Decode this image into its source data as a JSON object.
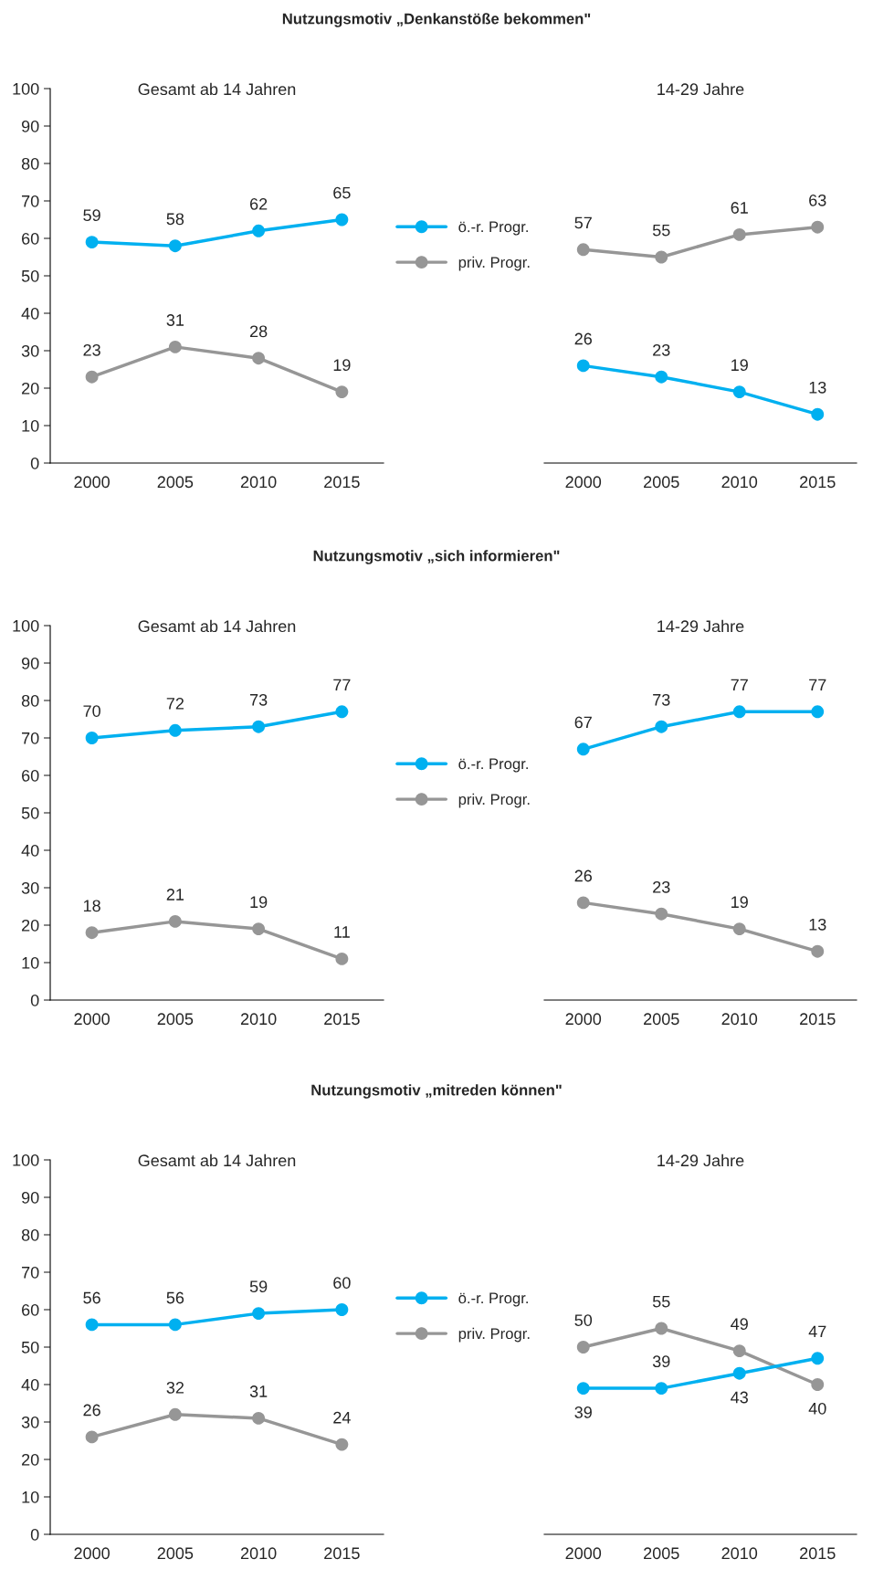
{
  "chart_data": [
    {
      "type": "line",
      "title": "Nutzungsmotiv „Denkanstöße bekommen\"",
      "subtitle": "Gesamt ab 14 Jahren",
      "categories": [
        "2000",
        "2005",
        "2010",
        "2015"
      ],
      "series": [
        {
          "name": "ö.-r. Progr.",
          "color": "#00b0f0",
          "values": [
            59,
            58,
            62,
            65
          ]
        },
        {
          "name": "priv. Progr.",
          "color": "#969696",
          "values": [
            23,
            31,
            28,
            19
          ]
        }
      ],
      "ylim": [
        0,
        100
      ],
      "yticks": [
        0,
        10,
        20,
        30,
        40,
        50,
        60,
        70,
        80,
        90,
        100
      ],
      "data_labels": true,
      "marker": "circle",
      "legend": "right",
      "grid": false
    },
    {
      "type": "line",
      "subtitle": "14-29 Jahre",
      "categories": [
        "2000",
        "2005",
        "2010",
        "2015"
      ],
      "series": [
        {
          "color": "#969696",
          "values": [
            57,
            55,
            61,
            63
          ]
        },
        {
          "color": "#00b0f0",
          "values": [
            26,
            23,
            19,
            13
          ]
        }
      ],
      "ylim": [
        0,
        100
      ],
      "tick_labels": "x",
      "data_labels": true,
      "marker": "circle",
      "grid": false
    },
    {
      "type": "line",
      "title": "Nutzungsmotiv „sich informieren\"",
      "subtitle": "Gesamt ab 14 Jahren",
      "categories": [
        "2000",
        "2005",
        "2010",
        "2015"
      ],
      "series": [
        {
          "name": "ö.-r. Progr.",
          "color": "#00b0f0",
          "values": [
            70,
            72,
            73,
            77
          ]
        },
        {
          "name": "priv. Progr.",
          "color": "#969696",
          "values": [
            18,
            21,
            19,
            11
          ]
        }
      ],
      "ylim": [
        0,
        100
      ],
      "yticks": [
        0,
        10,
        20,
        30,
        40,
        50,
        60,
        70,
        80,
        90,
        100
      ],
      "data_labels": true,
      "marker": "circle",
      "legend": "right",
      "grid": false
    },
    {
      "type": "line",
      "subtitle": "14-29 Jahre",
      "categories": [
        "2000",
        "2005",
        "2010",
        "2015"
      ],
      "series": [
        {
          "color": "#00b0f0",
          "values": [
            67,
            73,
            77,
            77
          ]
        },
        {
          "color": "#969696",
          "values": [
            26,
            23,
            19,
            13
          ]
        }
      ],
      "ylim": [
        0,
        100
      ],
      "tick_labels": "x",
      "data_labels": true,
      "marker": "circle",
      "grid": false
    },
    {
      "type": "line",
      "title": "Nutzungsmotiv „mitreden können\"",
      "subtitle": "Gesamt ab 14 Jahren",
      "categories": [
        "2000",
        "2005",
        "2010",
        "2015"
      ],
      "series": [
        {
          "name": "ö.-r. Progr.",
          "color": "#00b0f0",
          "values": [
            56,
            56,
            59,
            60
          ]
        },
        {
          "name": "priv. Progr.",
          "color": "#969696",
          "values": [
            26,
            32,
            31,
            24
          ]
        }
      ],
      "ylim": [
        0,
        100
      ],
      "yticks": [
        0,
        10,
        20,
        30,
        40,
        50,
        60,
        70,
        80,
        90,
        100
      ],
      "data_labels": true,
      "marker": "circle",
      "legend": "right",
      "grid": false
    },
    {
      "type": "line",
      "subtitle": "14-29 Jahre",
      "categories": [
        "2000",
        "2005",
        "2010",
        "2015"
      ],
      "series": [
        {
          "color": "#969696",
          "values": [
            50,
            55,
            49,
            40
          ]
        },
        {
          "color": "#00b0f0",
          "values": [
            39,
            39,
            43,
            47
          ]
        }
      ],
      "ylim": [
        0,
        100
      ],
      "tick_labels": "x",
      "data_labels": true,
      "marker": "circle",
      "grid": false
    }
  ]
}
